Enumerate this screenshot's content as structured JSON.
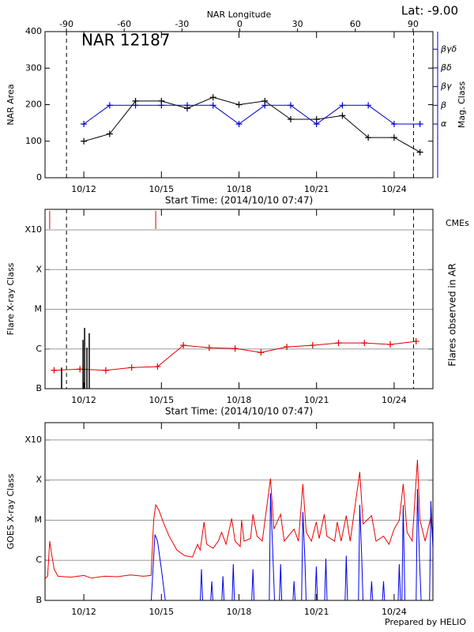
{
  "chart_data": [
    {
      "type": "line",
      "annotations": [
        "NAR 12187",
        "Lat:  -9.00"
      ],
      "xlabel": "Start Time: (2014/10/10 07:47)",
      "ylabel": "NAR Area",
      "y2label": "Mag. Class",
      "x2label": "NAR Longitude",
      "xlim": [
        0.5,
        15.5
      ],
      "xticks": [
        {
          "value": 2,
          "label": "10/12"
        },
        {
          "value": 5,
          "label": "10/15"
        },
        {
          "value": 8,
          "label": "10/18"
        },
        {
          "value": 11,
          "label": "10/21"
        },
        {
          "value": 14,
          "label": "10/24"
        }
      ],
      "ylim": [
        0,
        400
      ],
      "yticks": [
        0,
        100,
        200,
        300,
        400
      ],
      "y2lim": [
        -1.87,
        5.94
      ],
      "y2ticks": [
        {
          "value": 1,
          "label": "α"
        },
        {
          "value": 2,
          "label": "β"
        },
        {
          "value": 3,
          "label": "βγ"
        },
        {
          "value": 4,
          "label": "βδ"
        },
        {
          "value": 5,
          "label": "βγδ"
        }
      ],
      "y2color": "#0000cc",
      "x2lim": [
        -101.1,
        100.3
      ],
      "x2ticks": [
        -90,
        -60,
        -30,
        0,
        30,
        60,
        90
      ],
      "limb_x": [
        1.33,
        14.75
      ],
      "grid": false,
      "series": [
        {
          "color": "#000000",
          "marker": "plus",
          "x": [
            2,
            3,
            4,
            5,
            6,
            7,
            8,
            9,
            10,
            11,
            12,
            13,
            14,
            15
          ],
          "values": [
            100,
            120,
            210,
            210,
            190,
            220,
            200,
            210,
            160,
            160,
            170,
            110,
            110,
            70
          ]
        },
        {
          "color": "#0000cc",
          "marker": "plus",
          "axis": "y2",
          "x": [
            2,
            3,
            4,
            5,
            6,
            7,
            8,
            9,
            10,
            11,
            12,
            13,
            14,
            15
          ],
          "values": [
            1,
            2,
            2,
            2,
            2,
            2,
            1,
            2,
            2,
            1,
            2,
            2,
            1,
            1
          ]
        }
      ]
    },
    {
      "type": "line",
      "xlabel": "Start Time: (2014/10/10 07:47)",
      "ylabel": "Flare X-ray Class",
      "xlim": [
        0.5,
        15.5
      ],
      "xticks": [
        {
          "value": 2,
          "label": "10/12"
        },
        {
          "value": 5,
          "label": "10/15"
        },
        {
          "value": 8,
          "label": "10/18"
        },
        {
          "value": 11,
          "label": "10/21"
        },
        {
          "value": 14,
          "label": "10/24"
        }
      ],
      "ylog": true,
      "ylim": [
        1e-07,
        0.0033
      ],
      "yticks": [
        {
          "value": 1e-07,
          "label": "B"
        },
        {
          "value": 1e-06,
          "label": "C"
        },
        {
          "value": 1e-05,
          "label": "M"
        },
        {
          "value": 0.0001,
          "label": "X"
        },
        {
          "value": 0.001,
          "label": "X10"
        }
      ],
      "limb_x": [
        1.33,
        14.75
      ],
      "grid": true,
      "series": [
        {
          "color": "#dd0000",
          "marker": "plus",
          "x": [
            0.85,
            1.85,
            2.85,
            3.85,
            4.85,
            5.85,
            6.85,
            7.85,
            8.85,
            9.85,
            10.85,
            11.85,
            12.85,
            13.85,
            14.85
          ],
          "values": [
            2.9e-07,
            3.1e-07,
            2.9e-07,
            3.4e-07,
            3.6e-07,
            1.24e-06,
            1.08e-06,
            1.03e-06,
            8.2e-07,
            1.13e-06,
            1.24e-06,
            1.42e-06,
            1.42e-06,
            1.3e-06,
            1.56e-06
          ]
        },
        {
          "name": "Flares observed in AR",
          "color": "#000000",
          "style": "stem",
          "x": [
            1.14,
            1.97,
            2.03,
            2.12,
            2.21
          ],
          "values": [
            3.4e-07,
            1.7e-06,
            3.4e-06,
            1.08e-06,
            2.5e-06
          ]
        },
        {
          "name": "CMEs",
          "color": "#dd0000",
          "style": "event",
          "x": [
            0.68,
            4.78
          ]
        }
      ]
    },
    {
      "type": "line",
      "annotations": [
        "Prepared by HELIO"
      ],
      "ylabel": "GOES X-ray Class",
      "xlim": [
        0.5,
        15.5
      ],
      "xticks": [
        {
          "value": 2,
          "label": "10/12"
        },
        {
          "value": 5,
          "label": "10/15"
        },
        {
          "value": 8,
          "label": "10/18"
        },
        {
          "value": 11,
          "label": "10/21"
        },
        {
          "value": 14,
          "label": "10/24"
        }
      ],
      "ylog": true,
      "ylim": [
        1e-07,
        0.0027
      ],
      "yticks": [
        {
          "value": 1e-07,
          "label": "B"
        },
        {
          "value": 1e-06,
          "label": "C"
        },
        {
          "value": 1e-05,
          "label": "M"
        },
        {
          "value": 0.0001,
          "label": "X"
        },
        {
          "value": 0.001,
          "label": "X10"
        }
      ],
      "grid": true,
      "series": [
        {
          "color": "#ee0000",
          "x": [
            0.5,
            0.6,
            0.68,
            0.75,
            0.85,
            1.0,
            1.5,
            2.0,
            2.3,
            2.8,
            3.3,
            3.8,
            4.3,
            4.6,
            4.7,
            4.78,
            4.9,
            5.1,
            5.3,
            5.6,
            5.9,
            6.2,
            6.4,
            6.5,
            6.65,
            6.75,
            7.0,
            7.2,
            7.33,
            7.5,
            7.72,
            7.85,
            8.05,
            8.1,
            8.2,
            8.45,
            8.54,
            8.7,
            8.9,
            9.22,
            9.35,
            9.61,
            9.75,
            10.13,
            10.3,
            10.47,
            10.6,
            10.8,
            10.99,
            11.1,
            11.3,
            11.4,
            11.7,
            11.8,
            11.95,
            12.15,
            12.3,
            12.67,
            12.8,
            13.13,
            13.3,
            13.59,
            13.8,
            14.0,
            14.2,
            14.35,
            14.5,
            14.7,
            14.9,
            15.0,
            15.2,
            15.42,
            15.5
          ],
          "values": [
            3.5e-07,
            4e-07,
            3e-06,
            1.5e-06,
            6e-07,
            4e-07,
            3.8e-07,
            4.2e-07,
            3.6e-07,
            4e-07,
            3.9e-07,
            4.3e-07,
            4e-07,
            4.2e-07,
            1e-05,
            2.4e-05,
            1.8e-05,
            8e-06,
            4e-06,
            1.8e-06,
            1.3e-06,
            1.2e-06,
            2.5e-06,
            1.8e-06,
            9e-06,
            2.5e-06,
            2e-06,
            3e-06,
            5e-06,
            2.5e-06,
            1.1e-05,
            3e-06,
            2.2e-06,
            1e-05,
            3e-06,
            3.5e-06,
            1.4e-05,
            4e-06,
            3e-06,
            0.00011,
            6e-06,
            1.4e-05,
            3e-06,
            6e-06,
            3e-06,
            8e-05,
            5e-06,
            3e-06,
            9e-06,
            3.5e-06,
            1.4e-05,
            4e-06,
            3e-06,
            9e-06,
            3e-06,
            1.3e-05,
            3e-06,
            0.00016,
            8e-06,
            1.3e-05,
            3e-06,
            4e-06,
            2.5e-06,
            6e-06,
            1e-05,
            8e-05,
            5e-06,
            3e-06,
            0.00032,
            1e-05,
            3e-06,
            1.2e-05,
            3e-06
          ]
        },
        {
          "color": "#0000ee",
          "x": [
            0.5,
            4.6,
            4.75,
            4.85,
            5.0,
            5.15,
            6.0,
            6.5,
            6.55,
            6.6,
            6.9,
            6.95,
            7.0,
            7.33,
            7.38,
            7.43,
            7.73,
            7.78,
            7.83,
            8.49,
            8.54,
            8.59,
            9.17,
            9.22,
            9.3,
            9.38,
            9.56,
            9.61,
            9.66,
            10.08,
            10.13,
            10.18,
            10.42,
            10.47,
            10.55,
            10.6,
            10.94,
            10.99,
            11.04,
            11.31,
            11.36,
            11.41,
            12.1,
            12.15,
            12.2,
            12.62,
            12.67,
            12.75,
            12.8,
            13.08,
            13.13,
            13.18,
            13.54,
            13.59,
            13.64,
            14.15,
            14.2,
            14.25,
            14.3,
            14.35,
            14.42,
            14.85,
            14.9,
            14.98,
            15.05,
            15.37,
            15.42,
            15.5
          ],
          "values": [
            8e-08,
            8e-08,
            4.4e-06,
            3e-06,
            6e-07,
            1e-07,
            8e-08,
            8e-08,
            6e-07,
            8e-08,
            8e-08,
            3e-07,
            8e-08,
            8e-08,
            4e-07,
            8e-08,
            8e-08,
            8e-07,
            8e-08,
            8e-08,
            6e-07,
            8e-08,
            8e-08,
            4.7e-05,
            2e-06,
            8e-08,
            8e-08,
            8e-07,
            8e-08,
            8e-08,
            3e-07,
            8e-08,
            8e-08,
            1.6e-05,
            1e-06,
            8e-08,
            8e-08,
            7e-07,
            8e-08,
            8e-08,
            1.1e-06,
            8e-08,
            8e-08,
            1.3e-06,
            8e-08,
            8e-08,
            2.4e-05,
            1e-06,
            8e-08,
            8e-08,
            3e-07,
            8e-08,
            8e-08,
            3e-07,
            8e-08,
            8e-08,
            8e-07,
            8e-08,
            8e-08,
            2.4e-05,
            8e-08,
            8e-08,
            6e-05,
            1e-06,
            8e-08,
            8e-08,
            3e-05,
            2e-06
          ]
        }
      ]
    }
  ]
}
